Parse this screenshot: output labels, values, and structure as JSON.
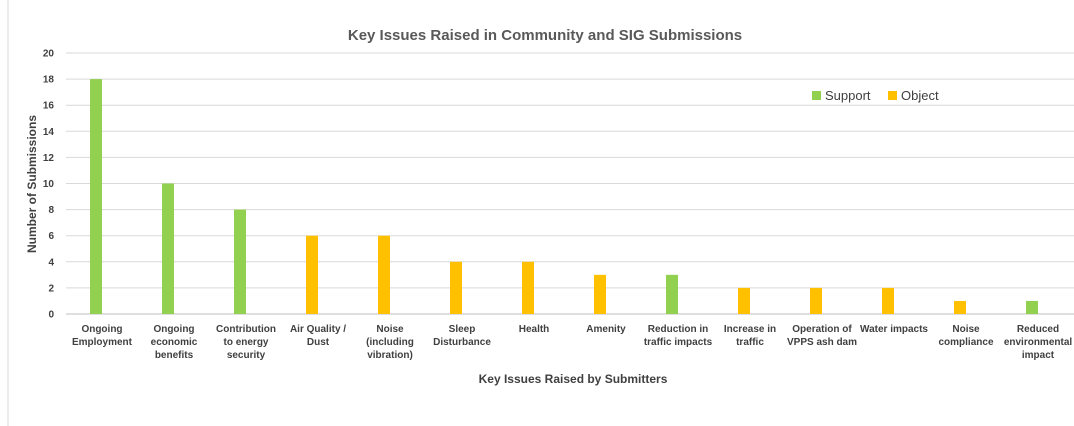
{
  "chart_data": {
    "type": "bar",
    "title": "Key Issues Raised in Community and SIG Submissions",
    "xlabel": "Key Issues Raised by Submitters",
    "ylabel": "Number of Submissions",
    "ylim": [
      0,
      20
    ],
    "ytick_step": 2,
    "grid": true,
    "legend_position": "top-right",
    "categories": [
      [
        "Ongoing",
        "Employment"
      ],
      [
        "Ongoing",
        "economic",
        "benefits"
      ],
      [
        "Contribution",
        "to energy",
        "security"
      ],
      [
        "Air Quality /",
        "Dust"
      ],
      [
        "Noise",
        "(including",
        "vibration)"
      ],
      [
        "Sleep",
        "Disturbance"
      ],
      [
        "Health"
      ],
      [
        "Amenity"
      ],
      [
        "Reduction in",
        "traffic impacts"
      ],
      [
        "Increase in",
        "traffic"
      ],
      [
        "Operation of",
        "VPPS ash dam"
      ],
      [
        "Water impacts"
      ],
      [
        "Noise",
        "compliance"
      ],
      [
        "Reduced",
        "environmental",
        "impact"
      ]
    ],
    "series": [
      {
        "name": "Support",
        "color": "#92D050",
        "values": [
          18,
          10,
          8,
          0,
          0,
          0,
          0,
          0,
          3,
          0,
          0,
          0,
          0,
          1
        ]
      },
      {
        "name": "Object",
        "color": "#FFC000",
        "values": [
          0,
          0,
          0,
          6,
          6,
          4,
          4,
          3,
          0,
          2,
          2,
          2,
          1,
          0
        ]
      }
    ]
  }
}
